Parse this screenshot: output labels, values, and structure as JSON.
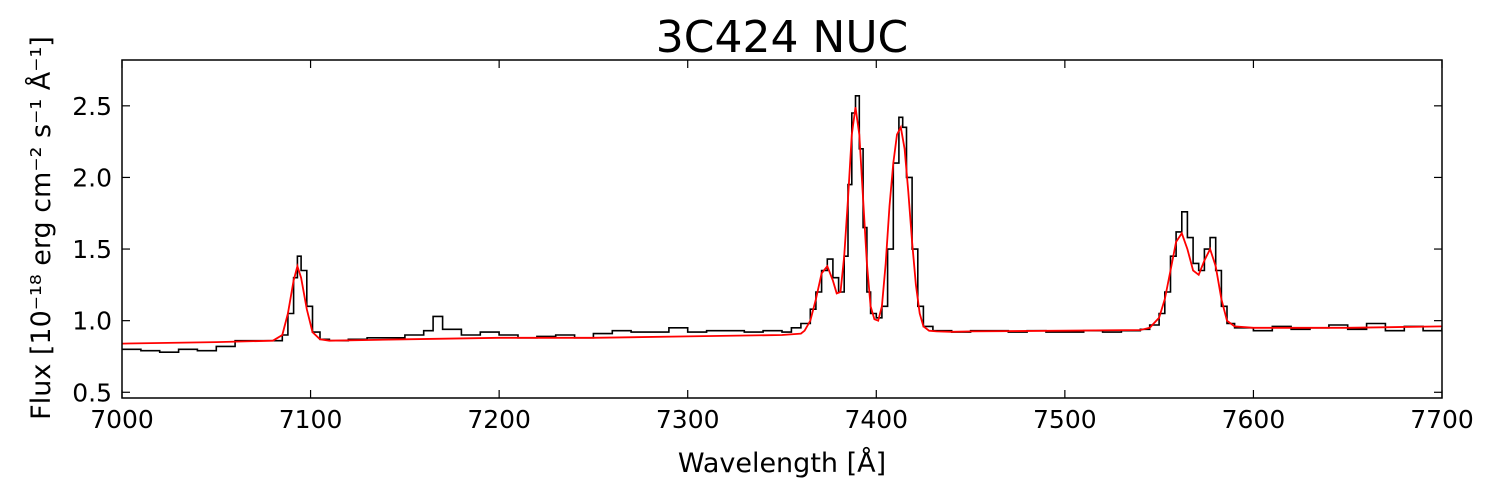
{
  "chart_data": {
    "type": "line",
    "title": "3C424 NUC",
    "xlabel": "Wavelength [Å]",
    "ylabel": "Flux [10⁻¹⁸ erg cm⁻² s⁻¹ Å⁻¹]",
    "xlim": [
      7000,
      7700
    ],
    "ylim": [
      0.46,
      2.82
    ],
    "xticks": [
      7000,
      7100,
      7200,
      7300,
      7400,
      7500,
      7600,
      7700
    ],
    "yticks": [
      0.5,
      1.0,
      1.5,
      2.0,
      2.5
    ],
    "xtick_labels": [
      "7000",
      "7100",
      "7200",
      "7300",
      "7400",
      "7500",
      "7600",
      "7700"
    ],
    "ytick_labels": [
      "0.5",
      "1.0",
      "1.5",
      "2.0",
      "2.5"
    ],
    "grid": false,
    "series": [
      {
        "style": "steps",
        "color": "#000000",
        "x": [
          7000,
          7010,
          7020,
          7030,
          7040,
          7050,
          7060,
          7070,
          7080,
          7085,
          7088,
          7091,
          7093,
          7095,
          7098,
          7101,
          7105,
          7110,
          7120,
          7130,
          7140,
          7150,
          7160,
          7165,
          7170,
          7180,
          7190,
          7200,
          7210,
          7220,
          7230,
          7240,
          7250,
          7260,
          7270,
          7280,
          7290,
          7300,
          7310,
          7320,
          7330,
          7340,
          7350,
          7355,
          7360,
          7365,
          7368,
          7371,
          7374,
          7377,
          7380,
          7383,
          7385,
          7387,
          7389,
          7391,
          7393,
          7395,
          7397,
          7400,
          7403,
          7406,
          7409,
          7412,
          7414,
          7416,
          7419,
          7422,
          7425,
          7430,
          7440,
          7450,
          7460,
          7470,
          7480,
          7490,
          7500,
          7510,
          7520,
          7530,
          7540,
          7545,
          7550,
          7553,
          7556,
          7559,
          7562,
          7565,
          7568,
          7571,
          7574,
          7577,
          7580,
          7583,
          7586,
          7590,
          7600,
          7610,
          7620,
          7630,
          7640,
          7650,
          7660,
          7670,
          7680,
          7690,
          7700
        ],
        "y": [
          0.8,
          0.79,
          0.78,
          0.8,
          0.79,
          0.82,
          0.86,
          0.86,
          0.86,
          0.9,
          1.05,
          1.3,
          1.45,
          1.35,
          1.1,
          0.92,
          0.87,
          0.86,
          0.87,
          0.88,
          0.88,
          0.9,
          0.93,
          1.03,
          0.94,
          0.9,
          0.92,
          0.9,
          0.88,
          0.89,
          0.9,
          0.88,
          0.91,
          0.93,
          0.92,
          0.92,
          0.95,
          0.92,
          0.93,
          0.93,
          0.92,
          0.93,
          0.92,
          0.95,
          0.98,
          1.08,
          1.2,
          1.35,
          1.43,
          1.3,
          1.2,
          1.45,
          1.95,
          2.45,
          2.57,
          2.2,
          1.65,
          1.2,
          1.05,
          1.02,
          1.1,
          1.5,
          2.1,
          2.42,
          2.35,
          2.0,
          1.5,
          1.1,
          0.96,
          0.93,
          0.92,
          0.93,
          0.93,
          0.92,
          0.93,
          0.92,
          0.92,
          0.93,
          0.92,
          0.93,
          0.94,
          0.97,
          1.05,
          1.2,
          1.45,
          1.62,
          1.76,
          1.58,
          1.4,
          1.35,
          1.5,
          1.58,
          1.35,
          1.1,
          0.98,
          0.95,
          0.93,
          0.96,
          0.94,
          0.95,
          0.97,
          0.94,
          0.98,
          0.93,
          0.96,
          0.93,
          0.95
        ]
      },
      {
        "style": "line",
        "color": "#ff0000",
        "x": [
          7000,
          7050,
          7080,
          7085,
          7088,
          7091,
          7093,
          7095,
          7098,
          7101,
          7105,
          7110,
          7150,
          7200,
          7250,
          7300,
          7350,
          7360,
          7362,
          7365,
          7368,
          7371,
          7374,
          7377,
          7379,
          7381,
          7383,
          7385,
          7387,
          7389,
          7391,
          7393,
          7395,
          7397,
          7399,
          7401,
          7403,
          7405,
          7407,
          7409,
          7411,
          7413,
          7415,
          7417,
          7419,
          7421,
          7423,
          7425,
          7428,
          7432,
          7440,
          7450,
          7500,
          7540,
          7545,
          7550,
          7553,
          7556,
          7559,
          7562,
          7565,
          7568,
          7571,
          7574,
          7577,
          7580,
          7583,
          7586,
          7590,
          7600,
          7650,
          7700
        ],
        "y": [
          0.84,
          0.85,
          0.86,
          0.9,
          1.05,
          1.28,
          1.38,
          1.3,
          1.08,
          0.92,
          0.87,
          0.86,
          0.87,
          0.88,
          0.88,
          0.89,
          0.9,
          0.91,
          0.93,
          1.0,
          1.15,
          1.33,
          1.38,
          1.28,
          1.19,
          1.2,
          1.45,
          1.85,
          2.3,
          2.49,
          2.3,
          1.85,
          1.4,
          1.1,
          1.01,
          1.0,
          1.1,
          1.4,
          1.8,
          2.1,
          2.3,
          2.35,
          2.2,
          1.9,
          1.55,
          1.25,
          1.05,
          0.96,
          0.93,
          0.925,
          0.922,
          0.925,
          0.93,
          0.935,
          0.95,
          1.02,
          1.15,
          1.35,
          1.55,
          1.61,
          1.5,
          1.35,
          1.32,
          1.42,
          1.5,
          1.38,
          1.15,
          1.0,
          0.96,
          0.95,
          0.95,
          0.96
        ]
      }
    ]
  }
}
